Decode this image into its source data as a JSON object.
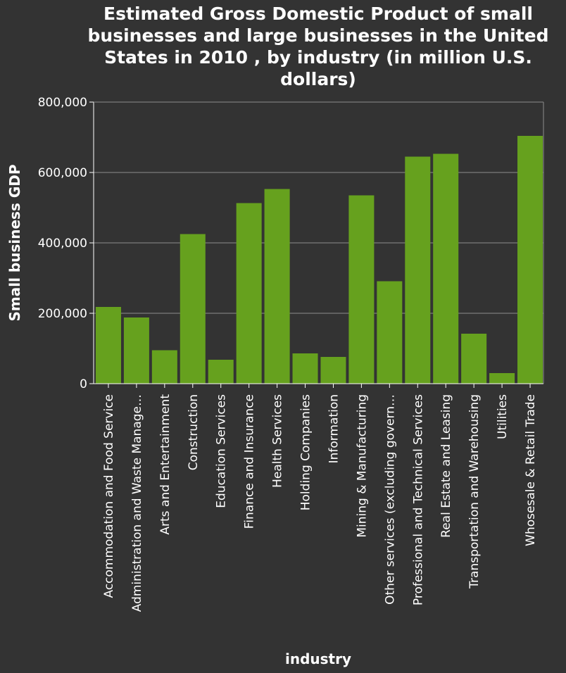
{
  "chart_data": {
    "type": "bar",
    "title": "Estimated Gross Domestic Product of small businesses and large businesses in the United States in 2010 , by industry (in million U.S. dollars)",
    "xlabel": "industry",
    "ylabel": "Small business GDP",
    "ylim": [
      0,
      800000
    ],
    "yticks": [
      "0",
      "200,000",
      "400,000",
      "600,000",
      "800,000"
    ],
    "ytick_values": [
      0,
      200000,
      400000,
      600000,
      800000
    ],
    "grid": true,
    "bar_color": "#66a11e",
    "background": "#333333",
    "categories": [
      "Accommodation and Food Service",
      "Administration and Waste Manage…",
      "Arts and Entertainment",
      "Construction",
      "Education Services",
      "Finance and Insurance",
      "Health Services",
      "Holding Companies",
      "Information",
      "Mining & Manufacturing",
      "Other services (excluding govern…",
      "Professional and Technical Services",
      "Real Estate and Leasing",
      "Transportation and Warehousing",
      "Utilities",
      "Whosesale & Retail Trade"
    ],
    "values": [
      218000,
      188000,
      95000,
      425000,
      68000,
      513000,
      553000,
      86000,
      76000,
      535000,
      291000,
      645000,
      653000,
      142000,
      30000,
      704000
    ]
  }
}
